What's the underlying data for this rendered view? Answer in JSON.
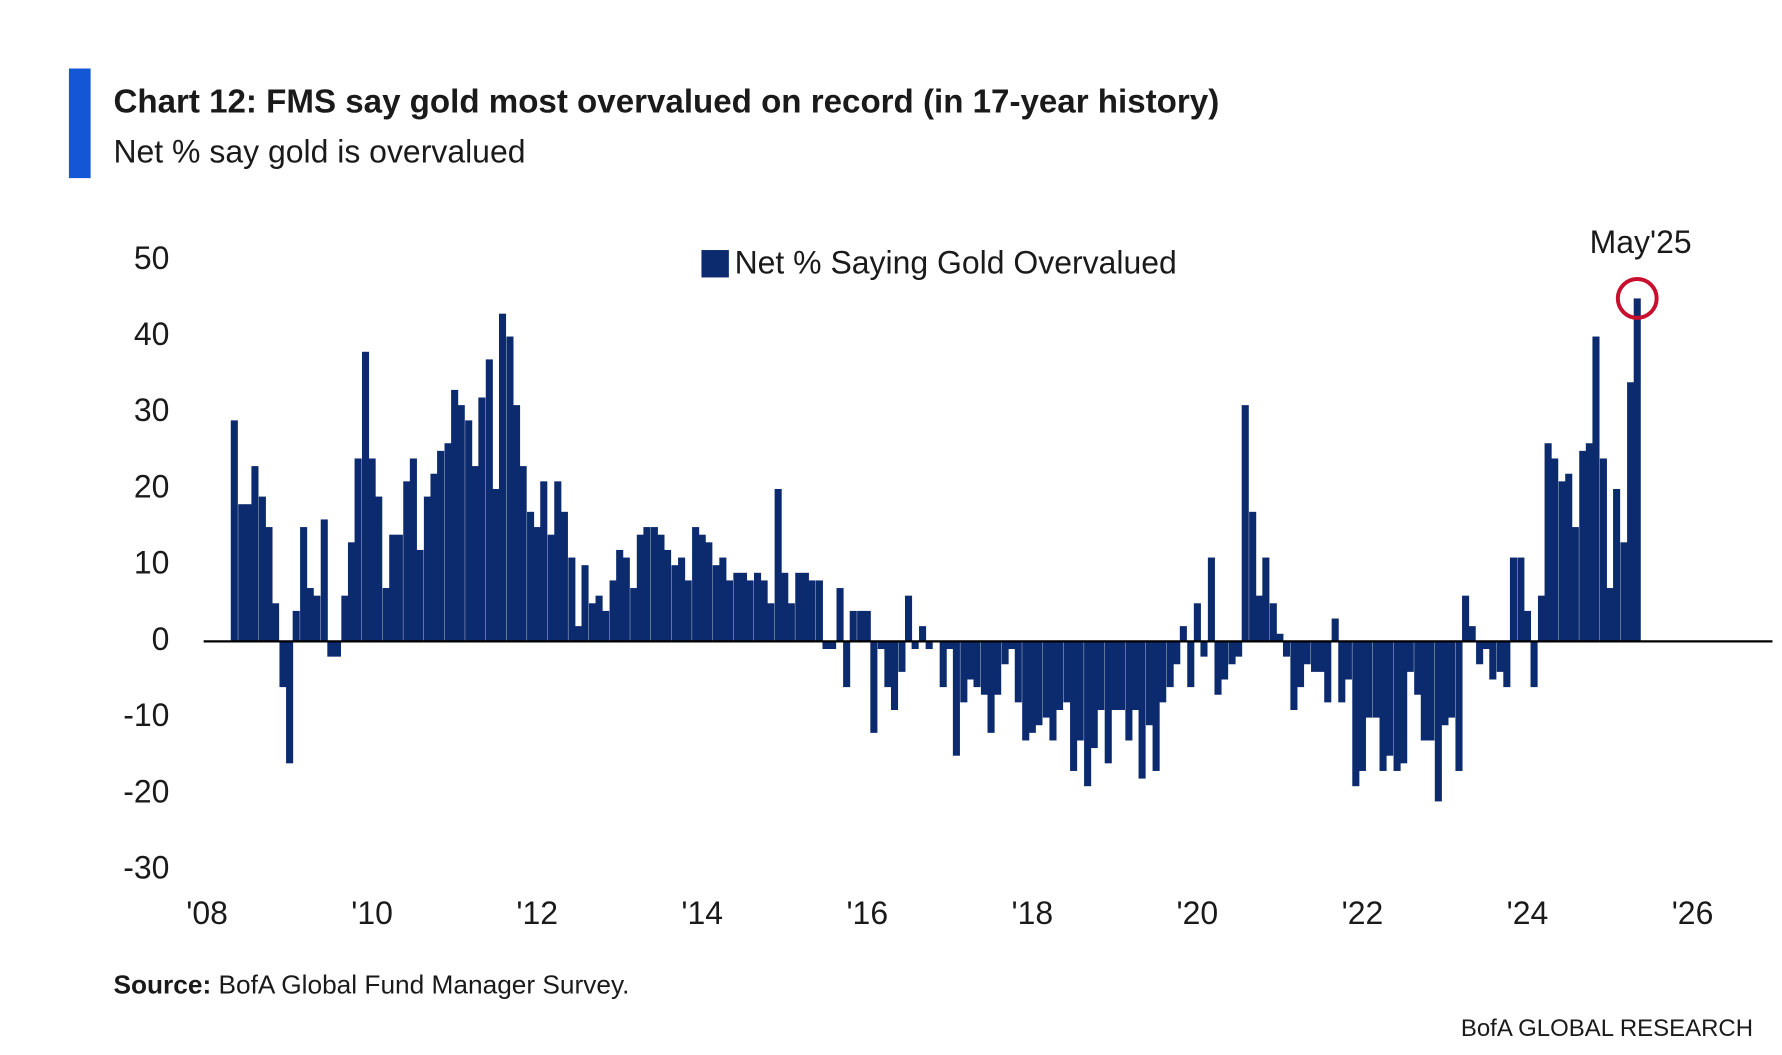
{
  "chart_data": {
    "type": "bar",
    "title": "Chart 12: FMS say gold most overvalued on record (in 17-year history)",
    "subtitle": "Net % say gold is overvalued",
    "source": {
      "label": "Source:",
      "text": "BofA Global Fund Manager Survey."
    },
    "footer": "BofA GLOBAL RESEARCH",
    "annotation": {
      "text": "May'25",
      "x": 2025.33,
      "y": 45,
      "color": "#c8102e"
    },
    "legend": "top-center",
    "series": [
      {
        "name": "Net % Saying Gold Overvalued",
        "color": "#0c2a6e",
        "x": [
          2008.33,
          2008.42,
          2008.5,
          2008.58,
          2008.67,
          2008.75,
          2008.83,
          2008.92,
          2009,
          2009.08,
          2009.17,
          2009.25,
          2009.33,
          2009.42,
          2009.5,
          2009.58,
          2009.67,
          2009.75,
          2009.83,
          2009.92,
          2010,
          2010.08,
          2010.17,
          2010.25,
          2010.33,
          2010.42,
          2010.5,
          2010.58,
          2010.67,
          2010.75,
          2010.83,
          2010.92,
          2011,
          2011.08,
          2011.17,
          2011.25,
          2011.33,
          2011.42,
          2011.5,
          2011.58,
          2011.67,
          2011.75,
          2011.83,
          2011.92,
          2012,
          2012.08,
          2012.17,
          2012.25,
          2012.33,
          2012.42,
          2012.5,
          2012.58,
          2012.67,
          2012.75,
          2012.83,
          2012.92,
          2013,
          2013.08,
          2013.17,
          2013.25,
          2013.33,
          2013.42,
          2013.5,
          2013.58,
          2013.67,
          2013.75,
          2013.83,
          2013.92,
          2014,
          2014.08,
          2014.17,
          2014.25,
          2014.33,
          2014.42,
          2014.5,
          2014.58,
          2014.67,
          2014.75,
          2014.83,
          2014.92,
          2015,
          2015.08,
          2015.17,
          2015.25,
          2015.33,
          2015.42,
          2015.5,
          2015.58,
          2015.67,
          2015.75,
          2015.83,
          2015.92,
          2016,
          2016.08,
          2016.17,
          2016.25,
          2016.33,
          2016.42,
          2016.5,
          2016.58,
          2016.67,
          2016.75,
          2016.83,
          2016.92,
          2017,
          2017.08,
          2017.17,
          2017.25,
          2017.33,
          2017.42,
          2017.5,
          2017.58,
          2017.67,
          2017.75,
          2017.83,
          2017.92,
          2018,
          2018.08,
          2018.17,
          2018.25,
          2018.33,
          2018.42,
          2018.5,
          2018.58,
          2018.67,
          2018.75,
          2018.83,
          2018.92,
          2019,
          2019.08,
          2019.17,
          2019.25,
          2019.33,
          2019.42,
          2019.5,
          2019.58,
          2019.67,
          2019.75,
          2019.83,
          2019.92,
          2020,
          2020.08,
          2020.17,
          2020.25,
          2020.33,
          2020.42,
          2020.5,
          2020.58,
          2020.67,
          2020.75,
          2020.83,
          2020.92,
          2021,
          2021.08,
          2021.17,
          2021.25,
          2021.33,
          2021.42,
          2021.5,
          2021.58,
          2021.67,
          2021.75,
          2021.83,
          2021.92,
          2022,
          2022.08,
          2022.17,
          2022.25,
          2022.33,
          2022.42,
          2022.5,
          2022.58,
          2022.67,
          2022.75,
          2022.83,
          2022.92,
          2023,
          2023.08,
          2023.17,
          2023.25,
          2023.33,
          2023.42,
          2023.5,
          2023.58,
          2023.67,
          2023.75,
          2023.83,
          2023.92,
          2024,
          2024.08,
          2024.17,
          2024.25,
          2024.33,
          2024.42,
          2024.5,
          2024.58,
          2024.67,
          2024.75,
          2024.83,
          2024.92,
          2025,
          2025.08,
          2025.17,
          2025.25,
          2025.33
        ],
        "values": [
          29,
          18,
          18,
          23,
          19,
          15,
          5,
          -6,
          -16,
          4,
          15,
          7,
          6,
          16,
          -2,
          -2,
          6,
          13,
          24,
          38,
          24,
          19,
          7,
          14,
          14,
          21,
          24,
          12,
          19,
          22,
          25,
          26,
          33,
          31,
          29,
          23,
          32,
          37,
          20,
          43,
          40,
          31,
          23,
          17,
          15,
          21,
          14,
          21,
          17,
          11,
          2,
          10,
          5,
          6,
          4,
          8,
          12,
          11,
          7,
          14,
          15,
          15,
          14,
          12,
          10,
          11,
          8,
          15,
          14,
          13,
          10,
          11,
          8,
          9,
          9,
          8,
          9,
          8,
          5,
          20,
          9,
          5,
          9,
          9,
          8,
          8,
          -1,
          -1,
          7,
          -6,
          4,
          4,
          4,
          -12,
          -1,
          -6,
          -9,
          -4,
          6,
          -1,
          2,
          -1,
          0,
          -6,
          -1,
          -15,
          -8,
          -5,
          -6,
          -7,
          -12,
          -7,
          -3,
          -1,
          -8,
          -13,
          -12,
          -11,
          -10,
          -13,
          -9,
          -8,
          -17,
          -13,
          -19,
          -14,
          -9,
          -16,
          -9,
          -9,
          -13,
          -9,
          -18,
          -11,
          -17,
          -8,
          -6,
          -3,
          2,
          -6,
          5,
          -2,
          11,
          -7,
          -5,
          -3,
          -2,
          31,
          17,
          6,
          11,
          5,
          1,
          -2,
          -9,
          -6,
          -3,
          -4,
          -4,
          -8,
          3,
          -8,
          -5,
          -19,
          -17,
          -10,
          -10,
          -17,
          -15,
          -17,
          -16,
          -4,
          -7,
          -13,
          -13,
          -21,
          -11,
          -10,
          -17,
          6,
          2,
          -3,
          -1,
          -5,
          -4,
          -6,
          11,
          11,
          4,
          -6,
          6,
          26,
          24,
          21,
          22,
          15,
          25,
          26,
          40,
          24,
          7,
          20,
          13,
          34,
          45
        ]
      }
    ],
    "xlim": [
      2008,
      2026
    ],
    "xticks": [
      {
        "value": 2008,
        "label": "'08"
      },
      {
        "value": 2010,
        "label": "'10"
      },
      {
        "value": 2012,
        "label": "'12"
      },
      {
        "value": 2014,
        "label": "'14"
      },
      {
        "value": 2016,
        "label": "'16"
      },
      {
        "value": 2018,
        "label": "'18"
      },
      {
        "value": 2020,
        "label": "'20"
      },
      {
        "value": 2022,
        "label": "'22"
      },
      {
        "value": 2024,
        "label": "'24"
      },
      {
        "value": 2026,
        "label": "'26"
      }
    ],
    "ylim": [
      -30,
      50
    ],
    "yticks": [
      -30,
      -20,
      -10,
      0,
      10,
      20,
      30,
      40,
      50
    ],
    "grid": false
  }
}
